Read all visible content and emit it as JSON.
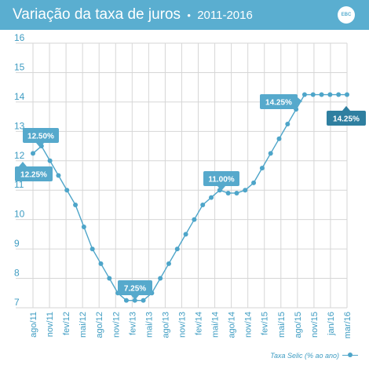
{
  "header": {
    "title": "Variação da taxa de juros",
    "separator": "•",
    "range": "2011-2016",
    "logo_text": "EBC"
  },
  "colors": {
    "header_bg": "#5aaed0",
    "line": "#4ea5c9",
    "axis_text": "#3e9cc2",
    "callout": "#56a9cc",
    "callout_dark": "#2f7fa0",
    "grid": "#d6d6d6"
  },
  "chart_data": {
    "type": "line",
    "ylim": [
      7,
      16
    ],
    "yticks": [
      7,
      8,
      9,
      10,
      11,
      12,
      13,
      14,
      15,
      16
    ],
    "grid": "vertical and horizontal",
    "x_tick_labels": [
      "ago/11",
      "nov/11",
      "fev/12",
      "mai/12",
      "ago/12",
      "nov/12",
      "fev/13",
      "mai/13",
      "ago/13",
      "nov/13",
      "fev/14",
      "mai/14",
      "ago/14",
      "nov/14",
      "fev/15",
      "mai/15",
      "ago/15",
      "nov/15",
      "jan/16",
      "mar/16"
    ],
    "series": [
      {
        "name": "Taxa Selic (% ao ano)",
        "values": [
          12.25,
          12.5,
          12.0,
          11.5,
          11.0,
          10.5,
          9.75,
          9.0,
          8.5,
          8.0,
          7.5,
          7.25,
          7.25,
          7.25,
          7.5,
          8.0,
          8.5,
          9.0,
          9.5,
          10.0,
          10.5,
          10.75,
          11.0,
          10.9,
          10.9,
          11.0,
          11.25,
          11.75,
          12.25,
          12.75,
          13.25,
          13.75,
          14.25,
          14.25,
          14.25,
          14.25,
          14.25,
          14.25
        ]
      }
    ],
    "annotations": [
      {
        "text": "12.50%",
        "index": 1,
        "value": 12.5
      },
      {
        "text": "12.25%",
        "index": 0,
        "value": 12.25
      },
      {
        "text": "7.25%",
        "index": 12,
        "value": 7.25
      },
      {
        "text": "11.00%",
        "index": 22,
        "value": 11.0
      },
      {
        "text": "14.25%",
        "index": 32,
        "value": 14.25
      },
      {
        "text": "14.25%",
        "index": 37,
        "value": 14.25
      }
    ]
  },
  "legend": {
    "label": "Taxa Selic (% ao ano)"
  }
}
